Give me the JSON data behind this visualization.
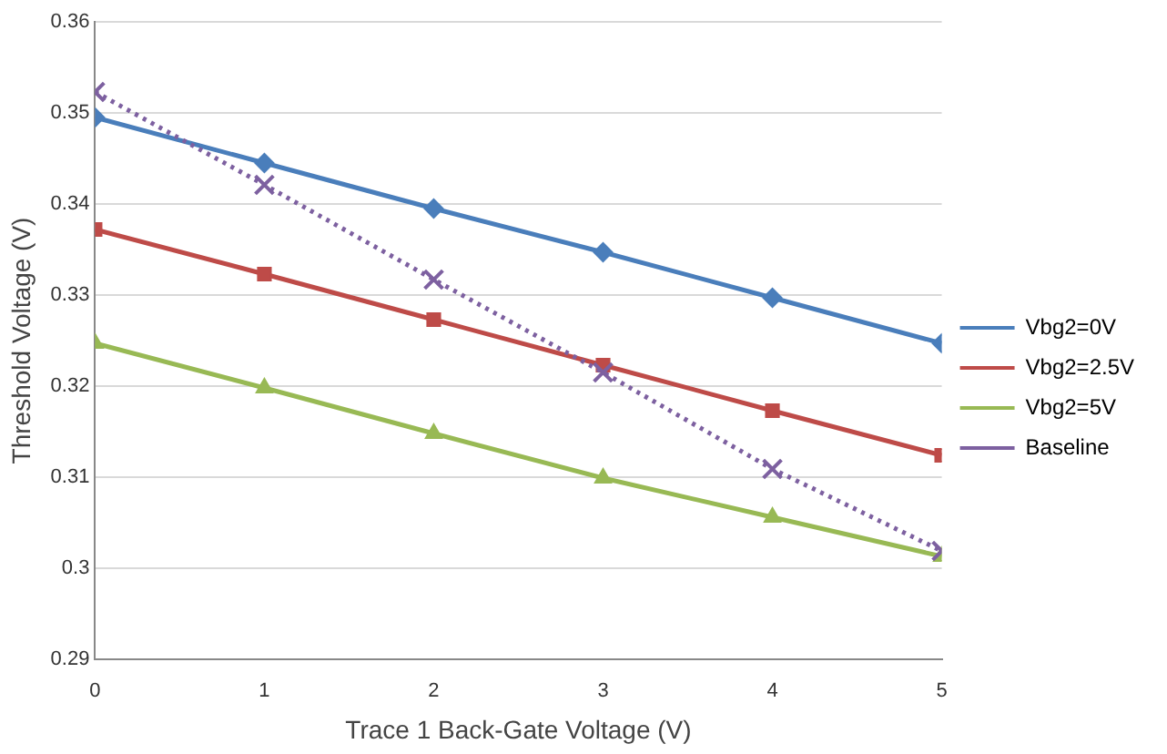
{
  "chart_data": {
    "type": "line",
    "xlabel": "Trace 1 Back-Gate Voltage (V)",
    "ylabel": "Threshold Voltage (V)",
    "x": [
      0,
      1,
      2,
      3,
      4,
      5
    ],
    "xlim": [
      0,
      5
    ],
    "xticks": [
      0,
      1,
      2,
      3,
      4,
      5
    ],
    "ylim": [
      0.29,
      0.36
    ],
    "yticks": [
      0.29,
      0.3,
      0.31,
      0.32,
      0.33,
      0.34,
      0.35,
      0.36
    ],
    "grid": "y",
    "legend": "right",
    "series": [
      {
        "name": "Vbg2=0V",
        "color": "#4a7ebb",
        "marker": "diamond",
        "line_style": "solid",
        "values": [
          0.3495,
          0.3445,
          0.3395,
          0.3347,
          0.3297,
          0.3247
        ]
      },
      {
        "name": "Vbg2=2.5V",
        "color": "#be4b48",
        "marker": "square",
        "line_style": "solid",
        "values": [
          0.3372,
          0.3323,
          0.3273,
          0.3223,
          0.3173,
          0.3124
        ]
      },
      {
        "name": "Vbg2=5V",
        "color": "#98b954",
        "marker": "triangle",
        "line_style": "solid",
        "values": [
          0.3247,
          0.3198,
          0.3148,
          0.3099,
          0.3056,
          0.3013
        ]
      },
      {
        "name": "Baseline",
        "color": "#7d60a0",
        "marker": "cross",
        "line_style": "dotted",
        "values": [
          0.3523,
          0.3421,
          0.3317,
          0.3215,
          0.3109,
          0.3019
        ]
      }
    ]
  }
}
